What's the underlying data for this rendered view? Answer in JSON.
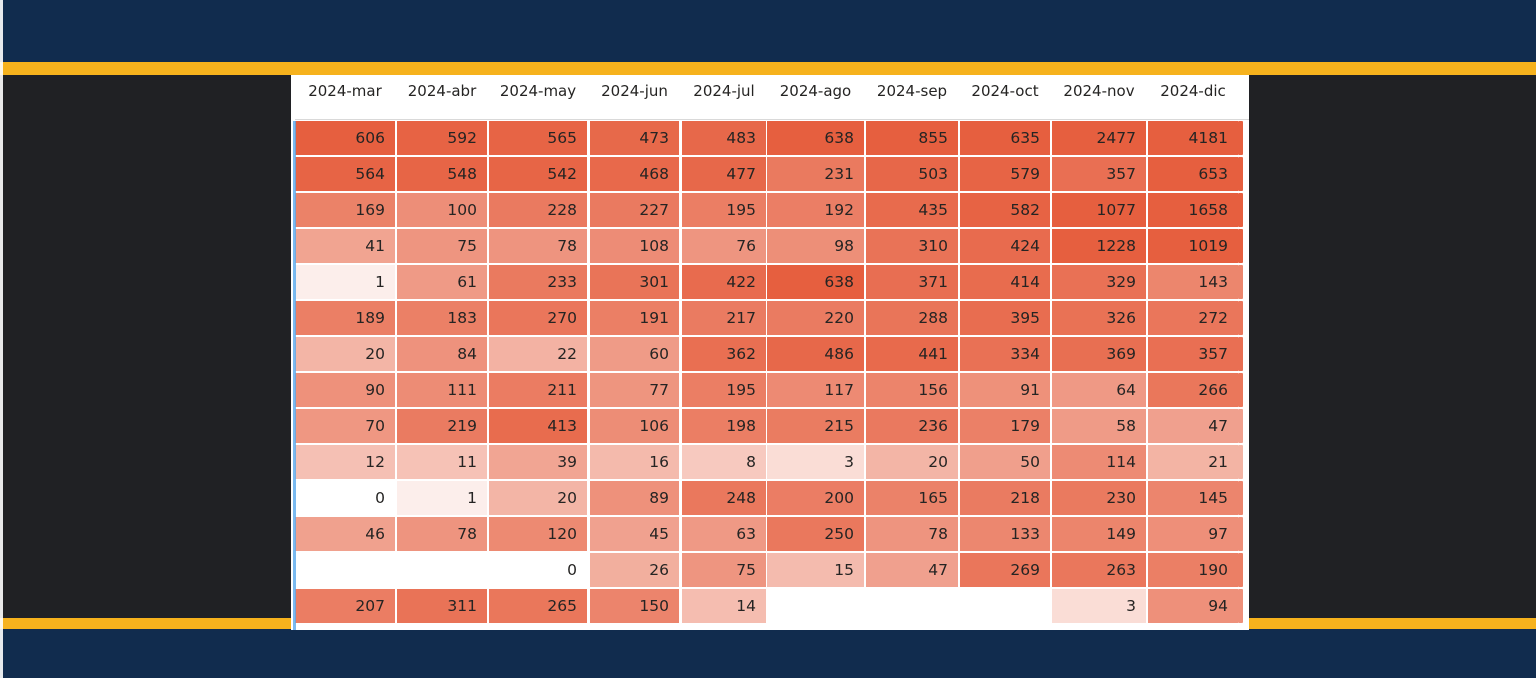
{
  "colors": {
    "band": "#112c4e",
    "accent": "#f6b21d",
    "canvas": "#202124",
    "table_bg": "#ffffff",
    "heat_low": "#ffffff",
    "heat_high": "#e65f3f"
  },
  "chart_data": {
    "type": "heatmap",
    "title": "",
    "xlabel": "",
    "ylabel": "",
    "x": [
      "2024-mar",
      "2024-abr",
      "2024-may",
      "2024-jun",
      "2024-jul",
      "2024-ago",
      "2024-sep",
      "2024-oct",
      "2024-nov",
      "2024-dic"
    ],
    "rows": [
      [
        606,
        592,
        565,
        473,
        483,
        638,
        855,
        635,
        2477,
        4181
      ],
      [
        564,
        548,
        542,
        468,
        477,
        231,
        503,
        579,
        357,
        653
      ],
      [
        169,
        100,
        228,
        227,
        195,
        192,
        435,
        582,
        1077,
        1658
      ],
      [
        41,
        75,
        78,
        108,
        76,
        98,
        310,
        424,
        1228,
        1019
      ],
      [
        1,
        61,
        233,
        301,
        422,
        638,
        371,
        414,
        329,
        143
      ],
      [
        189,
        183,
        270,
        191,
        217,
        220,
        288,
        395,
        326,
        272
      ],
      [
        20,
        84,
        22,
        60,
        362,
        486,
        441,
        334,
        369,
        357
      ],
      [
        90,
        111,
        211,
        77,
        195,
        117,
        156,
        91,
        64,
        266
      ],
      [
        70,
        219,
        413,
        106,
        198,
        215,
        236,
        179,
        58,
        47
      ],
      [
        12,
        11,
        39,
        16,
        8,
        3,
        20,
        50,
        114,
        21
      ],
      [
        0,
        1,
        20,
        89,
        248,
        200,
        165,
        218,
        230,
        145
      ],
      [
        46,
        78,
        120,
        45,
        63,
        250,
        78,
        133,
        149,
        97
      ],
      [
        null,
        null,
        0,
        26,
        75,
        15,
        47,
        269,
        263,
        190
      ],
      [
        207,
        311,
        265,
        150,
        14,
        null,
        null,
        null,
        3,
        94
      ]
    ],
    "grid": false,
    "legend": "none"
  }
}
